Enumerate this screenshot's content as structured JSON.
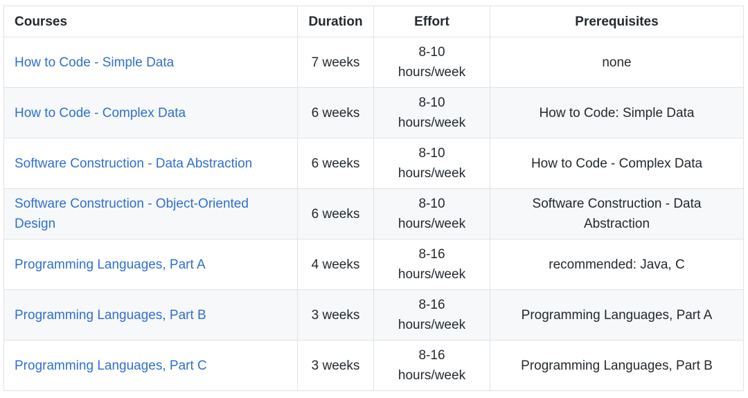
{
  "table": {
    "headers": {
      "courses": "Courses",
      "duration": "Duration",
      "effort": "Effort",
      "prerequisites": "Prerequisites"
    },
    "colors": {
      "link": "#2f6fd0",
      "border": "#dfe2e5",
      "stripe": "#f6f8fa",
      "text": "#24292e"
    },
    "rows": [
      {
        "course": "How to Code - Simple Data",
        "duration": "7 weeks",
        "effort_range": "8-10",
        "effort_unit": "hours/week",
        "prerequisites": "none"
      },
      {
        "course": "How to Code - Complex Data",
        "duration": "6 weeks",
        "effort_range": "8-10",
        "effort_unit": "hours/week",
        "prerequisites": "How to Code: Simple Data"
      },
      {
        "course": "Software Construction - Data Abstraction",
        "duration": "6 weeks",
        "effort_range": "8-10",
        "effort_unit": "hours/week",
        "prerequisites": "How to Code - Complex Data"
      },
      {
        "course": "Software Construction - Object-Oriented Design",
        "duration": "6 weeks",
        "effort_range": "8-10",
        "effort_unit": "hours/week",
        "prerequisites": "Software Construction - Data Abstraction"
      },
      {
        "course": "Programming Languages, Part A",
        "duration": "4 weeks",
        "effort_range": "8-16",
        "effort_unit": "hours/week",
        "prerequisites": "recommended: Java, C"
      },
      {
        "course": "Programming Languages, Part B",
        "duration": "3 weeks",
        "effort_range": "8-16",
        "effort_unit": "hours/week",
        "prerequisites": "Programming Languages, Part A"
      },
      {
        "course": "Programming Languages, Part C",
        "duration": "3 weeks",
        "effort_range": "8-16",
        "effort_unit": "hours/week",
        "prerequisites": "Programming Languages, Part B"
      }
    ]
  }
}
